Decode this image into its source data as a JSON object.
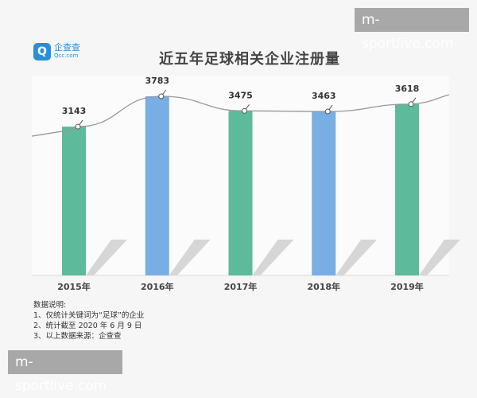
{
  "logo": {
    "text_cn": "企查查",
    "text_en": "Qcc.com"
  },
  "watermark": "m-sportlive.com",
  "notes": {
    "heading": "数据说明:",
    "lines": [
      "1、仅统计关键词为“足球”的企业",
      "2、统计截至 2020 年 6 月 9 日",
      "3、以上数据来源：企查查"
    ]
  },
  "colors": {
    "green": "#5dba9b",
    "blue": "#78aee3",
    "line": "#999999"
  },
  "chart_data": {
    "type": "bar",
    "title": "近五年足球相关企业注册量",
    "categories": [
      "2015年",
      "2016年",
      "2017年",
      "2018年",
      "2019年"
    ],
    "values": [
      3143,
      3783,
      3475,
      3463,
      3618
    ],
    "bar_colors": [
      "green",
      "blue",
      "green",
      "blue",
      "green"
    ],
    "overlay": "smoothed line through bar tops",
    "ylim": [
      0,
      3800
    ],
    "grid": false,
    "legend": "none"
  }
}
